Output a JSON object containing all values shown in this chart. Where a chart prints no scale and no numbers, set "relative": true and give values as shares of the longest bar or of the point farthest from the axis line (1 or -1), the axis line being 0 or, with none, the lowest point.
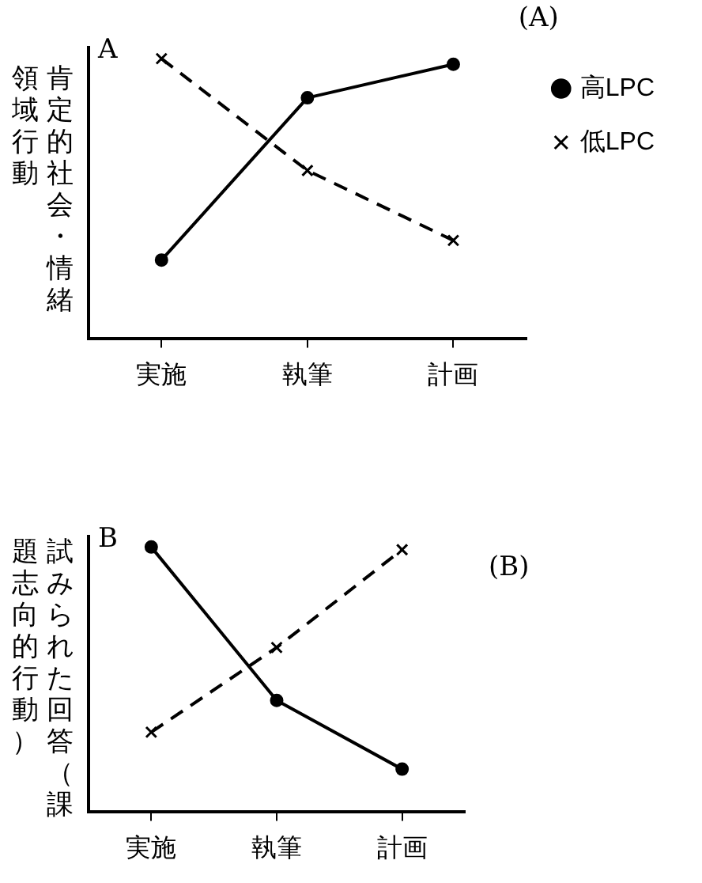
{
  "chart_data": [
    {
      "type": "line",
      "relative": true,
      "ylabel": "肯定的社会・情緒領域行動",
      "annotations": [
        "A",
        "(A)"
      ],
      "categories": [
        "実施",
        "執筆",
        "計画"
      ],
      "legend": "top right",
      "grid": false,
      "series": [
        {
          "name": "高LPC",
          "color": "#000000",
          "marker": "circle",
          "line_style": "solid",
          "values": [
            0.28,
            0.86,
            0.98
          ]
        },
        {
          "name": "低LPC",
          "color": "#000000",
          "marker": "cross",
          "line_style": "dashed",
          "values": [
            1,
            0.6,
            0.35
          ]
        }
      ]
    },
    {
      "type": "line",
      "relative": true,
      "ylabel": "試みられた回答（課題志向的行動）",
      "annotations": [
        "B",
        "(B)"
      ],
      "categories": [
        "実施",
        "執筆",
        "計画"
      ],
      "grid": false,
      "series": [
        {
          "color": "#000000",
          "marker": "circle",
          "line_style": "solid",
          "values": [
            1,
            0.42,
            0.16
          ]
        },
        {
          "color": "#000000",
          "marker": "cross",
          "line_style": "dashed",
          "values": [
            0.3,
            0.62,
            0.99
          ]
        }
      ]
    }
  ]
}
